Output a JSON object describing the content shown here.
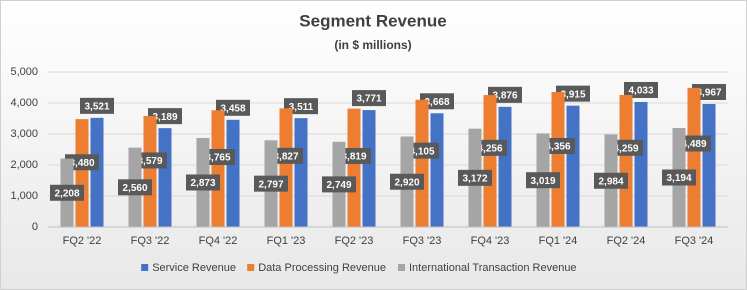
{
  "chart_data": {
    "type": "bar",
    "title": "Segment Revenue",
    "subtitle": "(in $ millions)",
    "categories": [
      "FQ2 '22",
      "FQ3 '22",
      "FQ4 '22",
      "FQ1 '23",
      "FQ2 '23",
      "FQ3 '23",
      "FQ4 '23",
      "FQ1 '24",
      "FQ2 '24",
      "FQ3 '24"
    ],
    "series": [
      {
        "name": "Service Revenue",
        "color": "#4472c4",
        "values": [
          3521,
          3189,
          3458,
          3511,
          3771,
          3668,
          3876,
          3915,
          4033,
          3967
        ],
        "value_labels": [
          "3,521",
          "3,189",
          "3,458",
          "3,511",
          "3,771",
          "3,668",
          "3,876",
          "3,915",
          "4,033",
          "3,967"
        ]
      },
      {
        "name": "Data Processing Revenue",
        "color": "#ed7d31",
        "values": [
          3480,
          3579,
          3765,
          3827,
          3819,
          4105,
          4256,
          4356,
          4259,
          4489
        ],
        "value_labels": [
          "3,480",
          "3,579",
          "3,765",
          "3,827",
          "3,819",
          "4,105",
          "4,256",
          "4,356",
          "4,259",
          "4,489"
        ]
      },
      {
        "name": "International Transaction Revenue",
        "color": "#a5a5a5",
        "values": [
          2208,
          2560,
          2873,
          2797,
          2749,
          2920,
          3172,
          3019,
          2984,
          3194
        ],
        "value_labels": [
          "2,208",
          "2,560",
          "2,873",
          "2,797",
          "2,749",
          "2,920",
          "3,172",
          "3,019",
          "2,984",
          "3,194"
        ]
      }
    ],
    "ylim": [
      0,
      5000
    ],
    "yticks": [
      0,
      {
        "value": 1000,
        "label": "1,000"
      },
      {
        "value": 2000,
        "label": "2,000"
      },
      {
        "value": 3000,
        "label": "3,000"
      },
      {
        "value": 4000,
        "label": "4,000"
      },
      {
        "value": 5000,
        "label": "5,000"
      }
    ],
    "legend": "bottom"
  }
}
